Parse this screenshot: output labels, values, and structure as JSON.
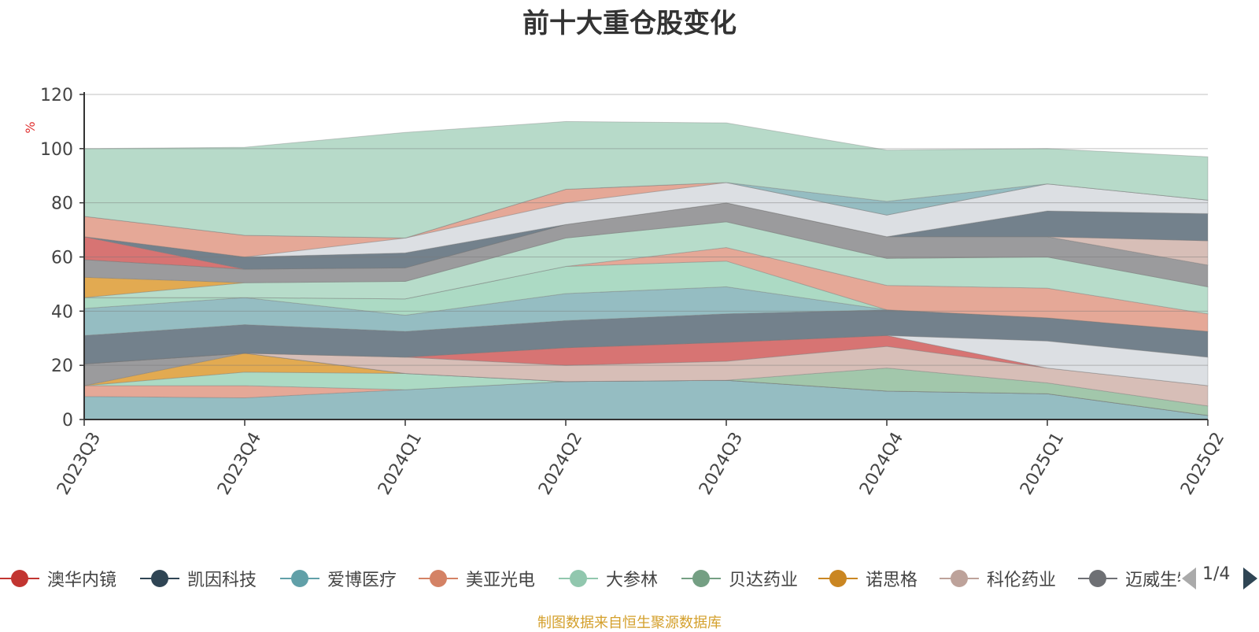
{
  "chart_data": {
    "type": "area",
    "title": "前十大重仓股变化",
    "ylabel": "%",
    "ylim": [
      0,
      120
    ],
    "yticks": [
      0,
      20,
      40,
      60,
      80,
      100,
      120
    ],
    "grid": true,
    "stacked": true,
    "categories": [
      "2023Q3",
      "2023Q4",
      "2024Q1",
      "2024Q2",
      "2024Q3",
      "2024Q4",
      "2025Q1",
      "2025Q2"
    ],
    "series": [
      {
        "name": "",
        "color": "#8fb9bf",
        "values": [
          8.5,
          8,
          11,
          14,
          14.5,
          10.5,
          9.5,
          1.5
        ]
      },
      {
        "name": "",
        "color": "#e4a391",
        "values": [
          4,
          4.5,
          0,
          0,
          0,
          0,
          0,
          0
        ]
      },
      {
        "name": "",
        "color": "#a8d8c1",
        "values": [
          0,
          5,
          6,
          0,
          0,
          0,
          0,
          0
        ]
      },
      {
        "name": "",
        "color": "#e0a548",
        "values": [
          0,
          7,
          0,
          0,
          0,
          0,
          0,
          0
        ]
      },
      {
        "name": "",
        "color": "#969698",
        "values": [
          8,
          0,
          0,
          0,
          0,
          0,
          0,
          0
        ]
      },
      {
        "name": "",
        "color": "#9dc4a6",
        "values": [
          0,
          0,
          0,
          0,
          0,
          8.5,
          4,
          3.5
        ]
      },
      {
        "name": "",
        "color": "#d5bab3",
        "values": [
          0,
          0,
          6,
          6,
          7,
          8,
          5.5,
          7.5
        ]
      },
      {
        "name": "",
        "color": "#d56d6b",
        "values": [
          0,
          0,
          0,
          6.5,
          7,
          4,
          0,
          0
        ]
      },
      {
        "name": "",
        "color": "#dadde2",
        "values": [
          0,
          0,
          0,
          0,
          0,
          0,
          10,
          10.5
        ]
      },
      {
        "name": "",
        "color": "#6b7a86",
        "values": [
          10.5,
          10.5,
          9.5,
          10,
          10.5,
          9.5,
          8.5,
          9.5
        ]
      },
      {
        "name": "",
        "color": "#8fb9bf",
        "values": [
          10,
          10,
          6,
          10,
          10,
          0,
          0,
          0
        ]
      },
      {
        "name": "",
        "color": "#a8d8c1",
        "values": [
          4,
          0,
          6,
          10,
          9.5,
          0,
          0,
          0
        ]
      },
      {
        "name": "",
        "color": "#e4a391",
        "values": [
          0,
          0,
          0,
          0,
          5,
          9,
          11,
          6.5
        ]
      },
      {
        "name": "",
        "color": "#b3dac7",
        "values": [
          0,
          5.5,
          6.5,
          10.5,
          9.5,
          10,
          11.5,
          10
        ]
      },
      {
        "name": "",
        "color": "#e0a548",
        "values": [
          7.5,
          0,
          0,
          0,
          0,
          0,
          0,
          0
        ]
      },
      {
        "name": "",
        "color": "#969698",
        "values": [
          6.5,
          5,
          5,
          5,
          7,
          8,
          7.5,
          8
        ]
      },
      {
        "name": "",
        "color": "#d5bab3",
        "values": [
          0,
          0,
          0,
          0,
          0,
          0,
          0,
          9
        ]
      },
      {
        "name": "",
        "color": "#d56d6b",
        "values": [
          8.5,
          0,
          0,
          0,
          0,
          0,
          0,
          0
        ]
      },
      {
        "name": "",
        "color": "#6b7a86",
        "values": [
          0,
          4.5,
          5.5,
          0,
          0,
          0,
          9.5,
          10
        ]
      },
      {
        "name": "",
        "color": "#dadde2",
        "values": [
          0,
          0,
          5.5,
          8,
          7.5,
          8,
          10,
          5
        ]
      },
      {
        "name": "",
        "color": "#e4a391",
        "values": [
          7.5,
          8,
          0,
          5,
          0,
          0,
          0,
          0
        ]
      },
      {
        "name": "",
        "color": "#8fb9bf",
        "values": [
          0,
          0,
          0,
          0,
          0,
          5,
          0,
          0
        ]
      },
      {
        "name": "",
        "color": "#b3d8c6",
        "values": [
          25,
          32.5,
          39,
          25,
          22,
          19,
          13,
          16
        ]
      }
    ]
  },
  "legend": {
    "items": [
      {
        "label": "澳华内镜",
        "color": "#c23531"
      },
      {
        "label": "凯因科技",
        "color": "#2f4554"
      },
      {
        "label": "爱博医疗",
        "color": "#61a0a8"
      },
      {
        "label": "美亚光电",
        "color": "#d48265"
      },
      {
        "label": "大参林",
        "color": "#91c7ae"
      },
      {
        "label": "贝达药业",
        "color": "#749f83"
      },
      {
        "label": "诺思格",
        "color": "#ca8622"
      },
      {
        "label": "科伦药业",
        "color": "#bda29a"
      },
      {
        "label": "迈威生物",
        "color": "#6e7074"
      }
    ],
    "page": "1/4"
  },
  "source": "制图数据来自恒生聚源数据库"
}
